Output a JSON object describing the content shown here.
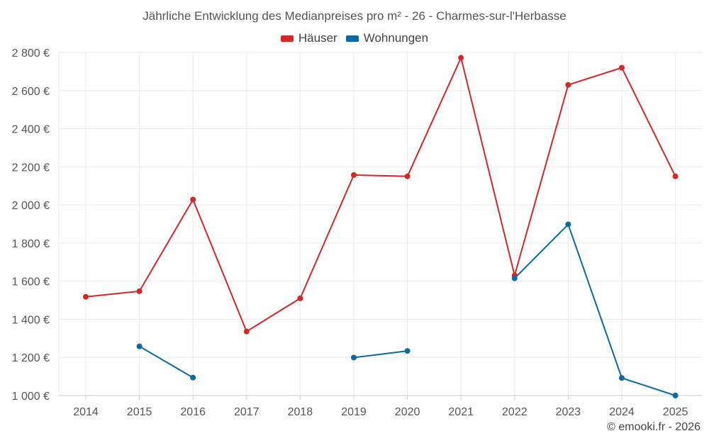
{
  "colors": {
    "haeuser": "#d62728",
    "wohnungen": "#0a6aa1",
    "grid": "#ebebeb",
    "axis": "#cccccc"
  },
  "chart_data": {
    "type": "line",
    "title": "Jährliche Entwicklung des Medianpreises pro m² - 26 - Charmes-sur-l'Herbasse",
    "xlabel": "",
    "ylabel": "",
    "x": [
      "2014",
      "2015",
      "2016",
      "2017",
      "2018",
      "2019",
      "2020",
      "2021",
      "2022",
      "2023",
      "2024",
      "2025"
    ],
    "ylim": [
      1000,
      2800
    ],
    "yticks": [
      1000,
      1200,
      1400,
      1600,
      1800,
      2000,
      2200,
      2400,
      2600,
      2800
    ],
    "ytick_labels": [
      "1 000 €",
      "1 200 €",
      "1 400 €",
      "1 600 €",
      "1 800 €",
      "2 000 €",
      "2 200 €",
      "2 400 €",
      "2 600 €",
      "2 800 €"
    ],
    "grid": true,
    "legend_position": "top-center",
    "series": [
      {
        "name": "Häuser",
        "color": "#d62728",
        "values": [
          1518,
          1547,
          2028,
          1336,
          1510,
          2157,
          2150,
          2772,
          1630,
          2630,
          2720,
          2150
        ]
      },
      {
        "name": "Wohnungen",
        "color": "#0a6aa1",
        "values": [
          null,
          1258,
          1094,
          null,
          null,
          1199,
          1234,
          null,
          1615,
          1898,
          1092,
          1000
        ]
      }
    ]
  },
  "footer": {
    "copyright": "© emooki.fr - 2026"
  }
}
